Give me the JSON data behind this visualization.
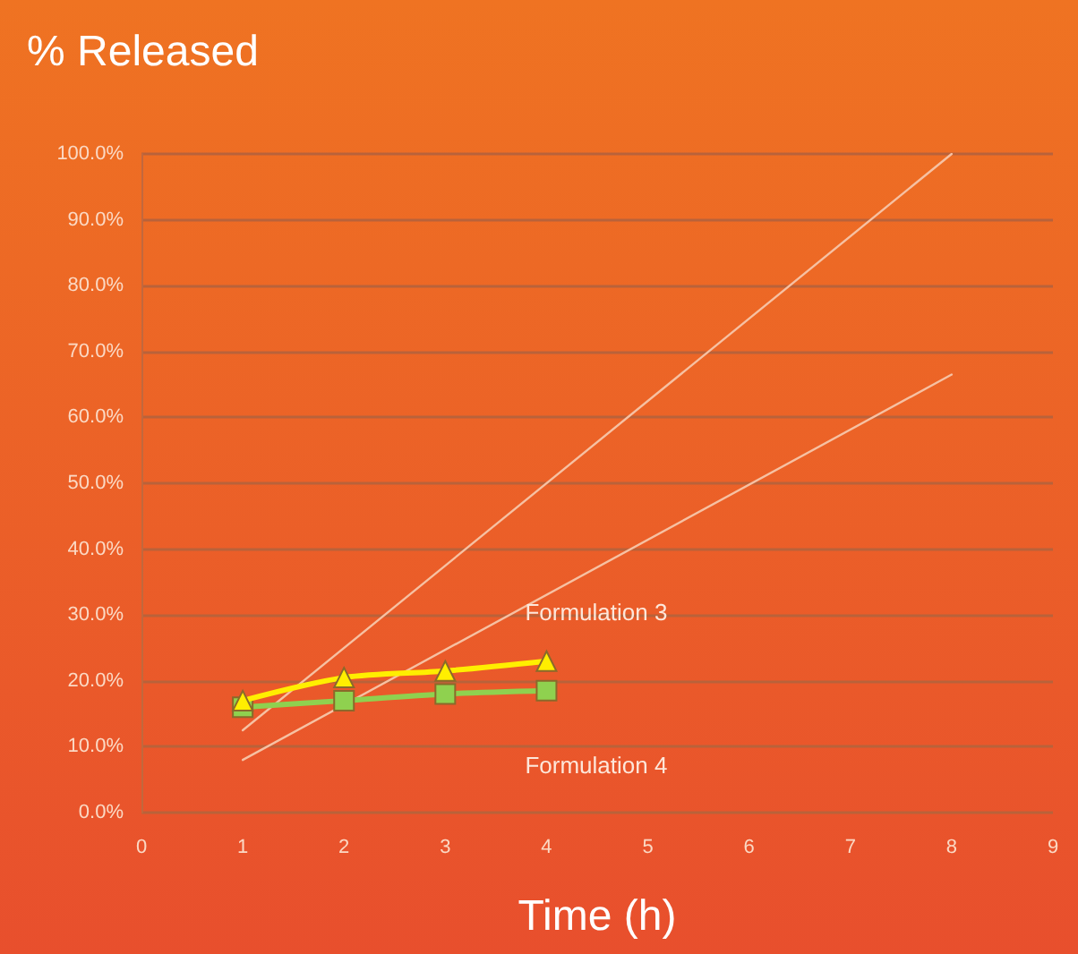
{
  "chart_data": {
    "type": "line",
    "title": "% Released",
    "xlabel": "Time (h)",
    "xlim": [
      0,
      9
    ],
    "xticks": [
      0,
      1,
      2,
      3,
      4,
      5,
      6,
      7,
      8,
      9
    ],
    "ylim": [
      0,
      100
    ],
    "yticks": [
      {
        "value": 0,
        "label": "0.0%"
      },
      {
        "value": 10,
        "label": "10.0%"
      },
      {
        "value": 20,
        "label": "20.0%"
      },
      {
        "value": 30,
        "label": "30.0%"
      },
      {
        "value": 40,
        "label": "40.0%"
      },
      {
        "value": 50,
        "label": "50.0%"
      },
      {
        "value": 60,
        "label": "60.0%"
      },
      {
        "value": 70,
        "label": "70.0%"
      },
      {
        "value": 80,
        "label": "80.0%"
      },
      {
        "value": 90,
        "label": "90.0%"
      },
      {
        "value": 100,
        "label": "100.0%"
      }
    ],
    "grid": "y",
    "legend": false,
    "series": [
      {
        "name": "Formulation 3",
        "color": "#ffee00",
        "marker": "triangle",
        "x": [
          1,
          2,
          3,
          4
        ],
        "values": [
          17,
          20.5,
          21.5,
          23
        ]
      },
      {
        "name": "Formulation 4",
        "color": "#8fd14f",
        "marker": "square",
        "x": [
          1,
          2,
          3,
          4
        ],
        "values": [
          16,
          17,
          18,
          18.5
        ]
      },
      {
        "color": "#f6c1a3",
        "marker": "none",
        "x": [
          1,
          8
        ],
        "values": [
          12.5,
          100
        ]
      },
      {
        "color": "#f6c1a3",
        "marker": "none",
        "x": [
          1,
          8
        ],
        "values": [
          8,
          66.5
        ]
      }
    ]
  }
}
